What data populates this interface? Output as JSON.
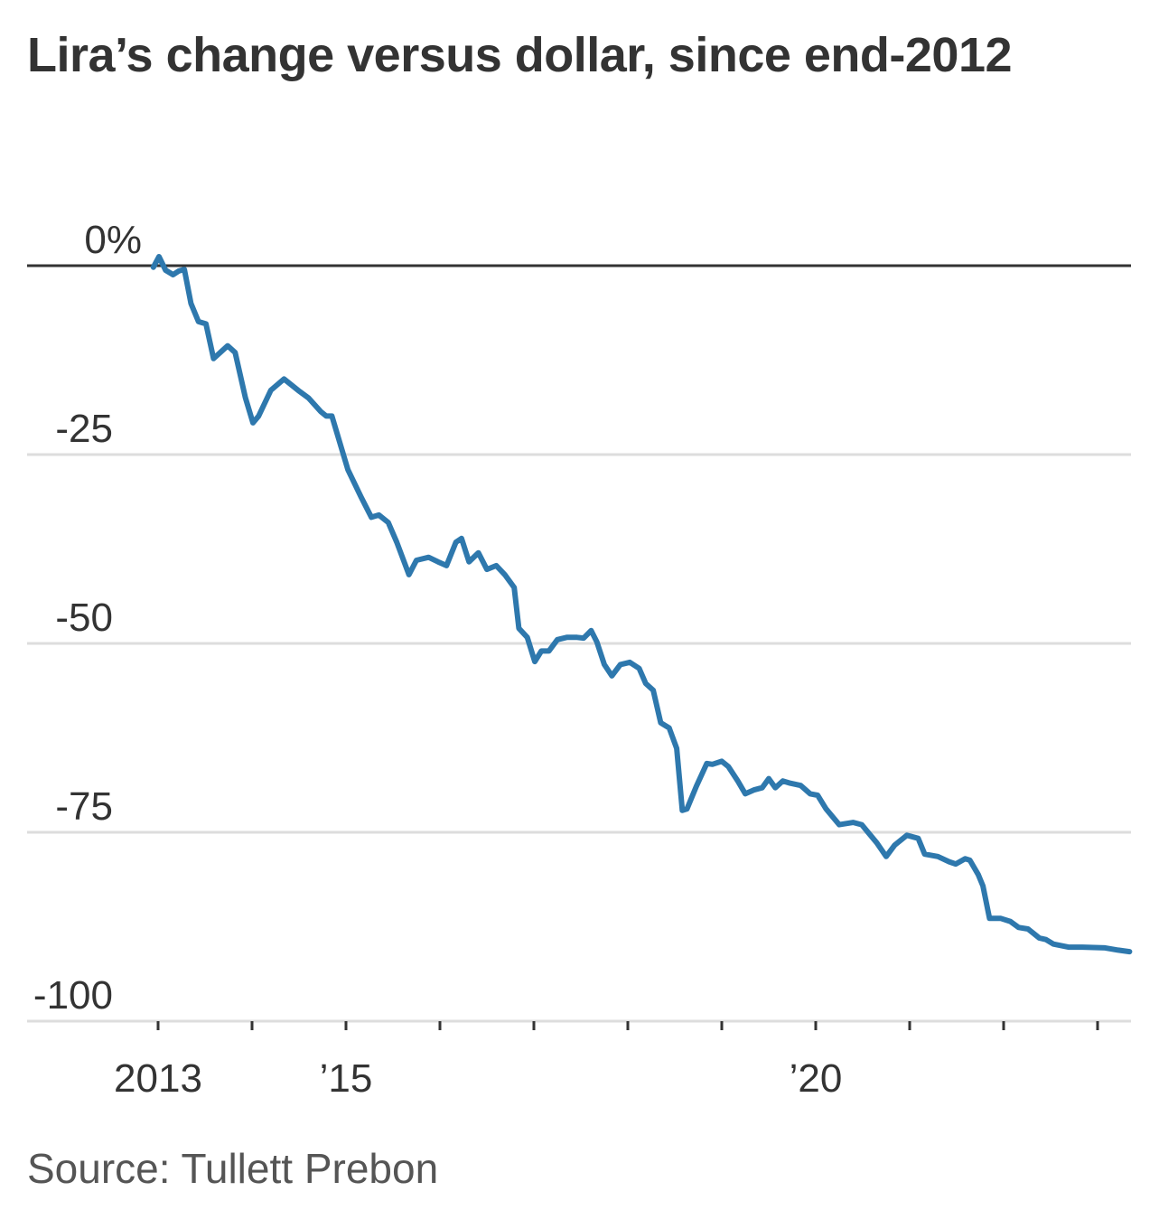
{
  "chart_data": {
    "type": "line",
    "title": "Lira’s change versus dollar, since end-2012",
    "source": "Source: Tullett Prebon",
    "xlabel": "",
    "ylabel": "",
    "ylim": [
      -100,
      0
    ],
    "xlim": [
      2012.95,
      2023.36
    ],
    "y_ticks": [
      0,
      -25,
      -50,
      -75,
      -100
    ],
    "y_tick_labels": [
      "0%",
      "-25",
      "-50",
      "-75",
      "-100"
    ],
    "x_ticks": [
      2013,
      2014,
      2015,
      2016,
      2017,
      2018,
      2019,
      2020,
      2021,
      2022,
      2023
    ],
    "x_tick_labels": [
      {
        "year": 2013,
        "label": "2013"
      },
      {
        "year": 2015,
        "label": "’15"
      },
      {
        "year": 2020,
        "label": "’20"
      }
    ],
    "grid": true,
    "line_color": "#2e78ad",
    "series": [
      {
        "x": [
          2012.95,
          2013.01,
          2013.08,
          2013.16,
          2013.22,
          2013.28,
          2013.35,
          2013.43,
          2013.51,
          2013.59,
          2013.74,
          2013.82,
          2013.93,
          2014.01,
          2014.07,
          2014.2,
          2014.34,
          2014.49,
          2014.6,
          2014.73,
          2014.79,
          2014.85,
          2015.02,
          2015.16,
          2015.27,
          2015.35,
          2015.45,
          2015.54,
          2015.67,
          2015.75,
          2015.88,
          2015.98,
          2016.07,
          2016.17,
          2016.23,
          2016.31,
          2016.41,
          2016.5,
          2016.6,
          2016.69,
          2016.79,
          2016.84,
          2016.93,
          2017.01,
          2017.08,
          2017.16,
          2017.25,
          2017.35,
          2017.46,
          2017.53,
          2017.61,
          2017.67,
          2017.75,
          2017.83,
          2017.92,
          2018.02,
          2018.12,
          2018.19,
          2018.27,
          2018.35,
          2018.44,
          2018.52,
          2018.58,
          2018.63,
          2018.73,
          2018.84,
          2018.9,
          2019.0,
          2019.07,
          2019.17,
          2019.25,
          2019.34,
          2019.43,
          2019.5,
          2019.57,
          2019.65,
          2019.73,
          2019.84,
          2019.94,
          2020.02,
          2020.11,
          2020.25,
          2020.4,
          2020.49,
          2020.55,
          2020.65,
          2020.75,
          2020.84,
          2020.97,
          2021.09,
          2021.16,
          2021.3,
          2021.42,
          2021.49,
          2021.59,
          2021.64,
          2021.73,
          2021.78,
          2021.85,
          2021.97,
          2022.07,
          2022.16,
          2022.26,
          2022.38,
          2022.45,
          2022.53,
          2022.69,
          2022.84,
          2023.08,
          2023.22,
          2023.34
        ],
        "y": [
          -0.2,
          1.2,
          -0.6,
          -1.2,
          -0.7,
          -0.5,
          -5.0,
          -7.4,
          -7.7,
          -12.3,
          -10.6,
          -11.5,
          -17.5,
          -20.8,
          -19.9,
          -16.5,
          -15.0,
          -16.5,
          -17.5,
          -19.3,
          -19.9,
          -19.9,
          -27.0,
          -30.6,
          -33.3,
          -33.0,
          -34.0,
          -36.6,
          -40.9,
          -39.0,
          -38.6,
          -39.2,
          -39.7,
          -36.6,
          -36.1,
          -39.2,
          -38.0,
          -40.2,
          -39.7,
          -40.9,
          -42.6,
          -48.0,
          -49.2,
          -52.4,
          -51.0,
          -51.0,
          -49.5,
          -49.2,
          -49.2,
          -49.3,
          -48.3,
          -49.8,
          -52.8,
          -54.3,
          -52.8,
          -52.5,
          -53.3,
          -55.3,
          -56.2,
          -60.5,
          -61.2,
          -63.9,
          -72.1,
          -71.9,
          -68.9,
          -65.9,
          -66.0,
          -65.6,
          -66.3,
          -68.2,
          -69.9,
          -69.4,
          -69.1,
          -67.9,
          -69.1,
          -68.2,
          -68.5,
          -68.8,
          -69.9,
          -70.1,
          -71.9,
          -74.0,
          -73.7,
          -74.0,
          -74.9,
          -76.4,
          -78.2,
          -76.7,
          -75.4,
          -75.8,
          -77.9,
          -78.2,
          -78.9,
          -79.2,
          -78.5,
          -78.7,
          -80.6,
          -82.1,
          -86.4,
          -86.4,
          -86.8,
          -87.6,
          -87.8,
          -89.0,
          -89.2,
          -89.8,
          -90.2,
          -90.2,
          -90.3,
          -90.6,
          -90.8
        ]
      }
    ]
  }
}
